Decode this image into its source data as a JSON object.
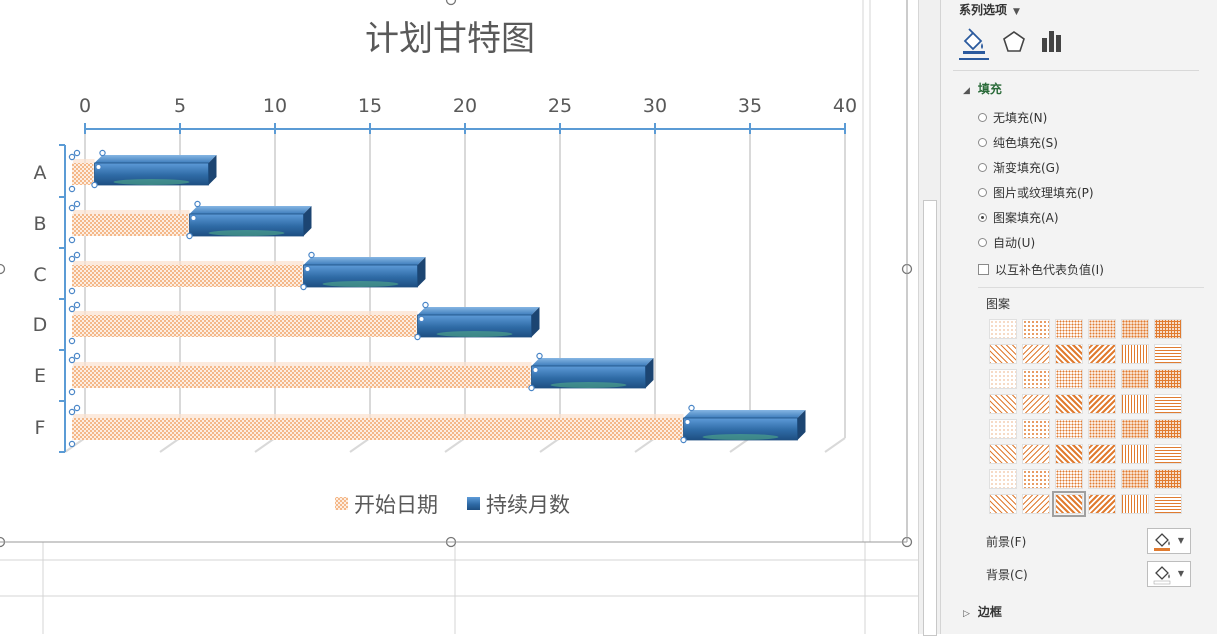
{
  "chart_data": {
    "type": "bar",
    "orientation": "horizontal",
    "stacked": true,
    "title": "计划甘特图",
    "categories": [
      "A",
      "B",
      "C",
      "D",
      "E",
      "F"
    ],
    "x_ticks": [
      "0",
      "5",
      "10",
      "15",
      "20",
      "25",
      "30",
      "35",
      "40"
    ],
    "xlim": [
      0,
      40
    ],
    "x_axis_position": "top",
    "grid": true,
    "legend_position": "bottom",
    "series": [
      {
        "name": "开始日期",
        "values": [
          0.5,
          5.5,
          11.5,
          17.5,
          23.5,
          31.5
        ],
        "color": "#f7c8a4",
        "fill": "pattern"
      },
      {
        "name": "持续月数",
        "values": [
          6,
          6,
          6,
          6,
          6,
          6
        ],
        "color": "#2f6ba6",
        "fill": "gradient"
      }
    ]
  },
  "pane": {
    "header": "系列选项",
    "tab_icons": [
      "fill-line-icon",
      "effects-pentagon-icon",
      "series-options-bars-icon"
    ],
    "fill_section": "填充",
    "options": [
      {
        "label": "无填充(N)",
        "selected": false
      },
      {
        "label": "纯色填充(S)",
        "selected": false
      },
      {
        "label": "渐变填充(G)",
        "selected": false
      },
      {
        "label": "图片或纹理填充(P)",
        "selected": false
      },
      {
        "label": "图案填充(A)",
        "selected": true
      },
      {
        "label": "自动(U)",
        "selected": false
      }
    ],
    "invert_label": "以互补色代表负值(I)",
    "pattern_label": "图案",
    "foreground_label": "前景(F)",
    "background_label": "背景(C)",
    "border_section": "边框",
    "pattern_color": "#e07b30",
    "selected_pattern": "row8-col3"
  }
}
